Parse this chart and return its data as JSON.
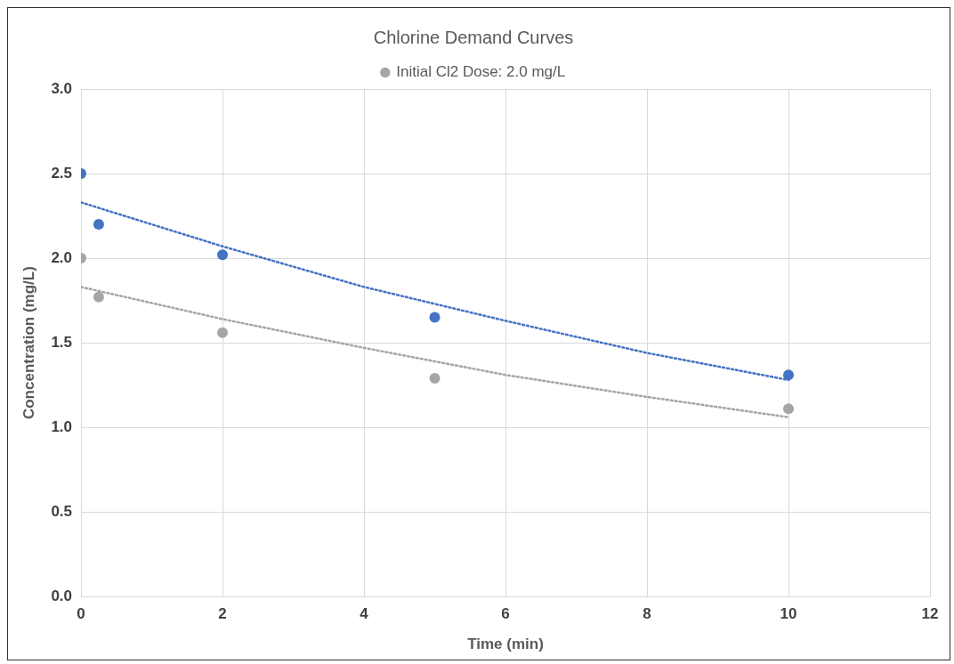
{
  "chart_data": {
    "type": "scatter",
    "title": "Chlorine Demand Curves",
    "xlabel": "Time (min)",
    "ylabel": "Concentration (mg/L)",
    "series": [
      {
        "type": "scatter",
        "color": "#4472c4",
        "marker": "circle",
        "x": [
          0,
          0.25,
          2,
          5,
          10
        ],
        "values": [
          2.5,
          2.2,
          2.02,
          1.65,
          1.31
        ]
      },
      {
        "type": "scatter",
        "name": "Initial Cl2 Dose: 2.0 mg/L",
        "color": "#a5a5a5",
        "marker": "circle",
        "x": [
          0,
          0.25,
          2,
          5,
          10
        ],
        "values": [
          2.0,
          1.77,
          1.56,
          1.29,
          1.11
        ]
      },
      {
        "type": "line",
        "color": "#4472c4",
        "marker": "none",
        "line_style": "dotted",
        "x": [
          0,
          2,
          4,
          6,
          8,
          10
        ],
        "values": [
          2.33,
          2.07,
          1.83,
          1.63,
          1.44,
          1.28
        ]
      },
      {
        "type": "line",
        "color": "#a5a5a5",
        "marker": "none",
        "line_style": "dotted",
        "x": [
          0,
          2,
          4,
          6,
          8,
          10
        ],
        "values": [
          1.83,
          1.64,
          1.47,
          1.31,
          1.18,
          1.06
        ]
      }
    ],
    "xlim": [
      0,
      12
    ],
    "xticks": [
      0,
      2,
      4,
      6,
      8,
      10,
      12
    ],
    "ylim": [
      0,
      3
    ],
    "yticks": [
      {
        "value": 0,
        "label": "0.0"
      },
      {
        "value": 0.5,
        "label": "0.5"
      },
      {
        "value": 1,
        "label": "1.0"
      },
      {
        "value": 1.5,
        "label": "1.5"
      },
      {
        "value": 2,
        "label": "2.0"
      },
      {
        "value": 2.5,
        "label": "2.5"
      },
      {
        "value": 3,
        "label": "3.0"
      }
    ],
    "grid": true,
    "legend": "top"
  }
}
